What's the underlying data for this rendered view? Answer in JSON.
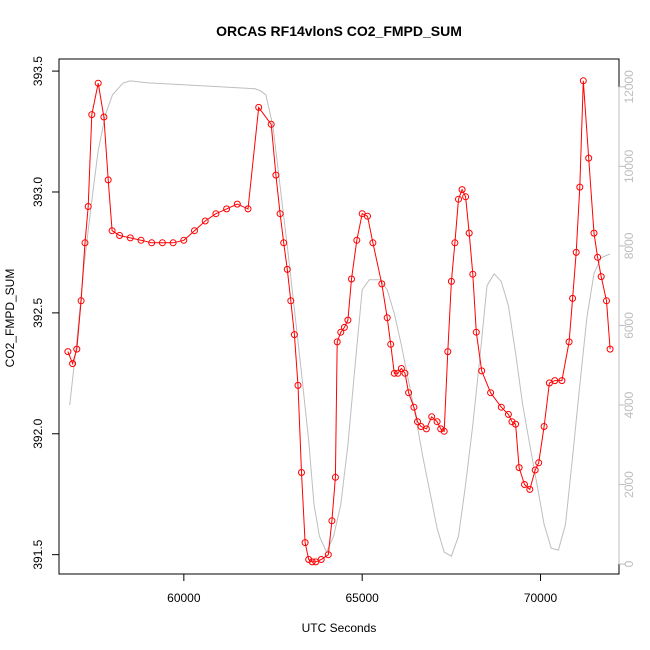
{
  "chart_data": {
    "type": "line",
    "title": "ORCAS RF14vlonS CO2_FMPD_SUM",
    "xlabel": "UTC Seconds",
    "ylabel": "CO2_FMPD_SUM",
    "xlim": [
      56500,
      72200
    ],
    "ylim": [
      391.42,
      393.55
    ],
    "y2lim": [
      -250,
      12700
    ],
    "x_ticks": [
      60000,
      65000,
      70000
    ],
    "y_ticks": [
      391.5,
      392.0,
      392.5,
      393.0,
      393.5
    ],
    "y_tick_labels": [
      "391.5",
      "392.0",
      "392.5",
      "393.0",
      "393.5"
    ],
    "y2_ticks": [
      0,
      2000,
      4000,
      6000,
      8000,
      10000,
      12000
    ],
    "grid": false,
    "colors": {
      "primary": "#ff0000",
      "secondary": "#bebebe"
    },
    "series": [
      {
        "axis": "left",
        "style": "line+points",
        "x": [
          56750,
          56880,
          57000,
          57120,
          57230,
          57320,
          57420,
          57600,
          57760,
          57880,
          57990,
          58200,
          58500,
          58800,
          59100,
          59400,
          59700,
          60000,
          60300,
          60600,
          60900,
          61200,
          61500,
          61800,
          62100,
          62450,
          62580,
          62700,
          62800,
          62900,
          63000,
          63100,
          63200,
          63300,
          63400,
          63500,
          63600,
          63700,
          63850,
          64050,
          64150,
          64250,
          64300,
          64400,
          64500,
          64600,
          64700,
          64850,
          65000,
          65150,
          65300,
          65550,
          65700,
          65800,
          65900,
          66000,
          66100,
          66200,
          66300,
          66450,
          66550,
          66650,
          66800,
          66950,
          67100,
          67200,
          67300,
          67400,
          67500,
          67600,
          67700,
          67800,
          67900,
          68000,
          68100,
          68200,
          68350,
          68600,
          68900,
          69100,
          69200,
          69300,
          69400,
          69550,
          69700,
          69850,
          69950,
          70100,
          70250,
          70400,
          70600,
          70800,
          70900,
          71000,
          71100,
          71200,
          71350,
          71500,
          71600,
          71700,
          71850,
          71950
        ],
        "y": [
          392.34,
          392.29,
          392.35,
          392.55,
          392.79,
          392.94,
          393.32,
          393.45,
          393.31,
          393.05,
          392.84,
          392.82,
          392.81,
          392.8,
          392.79,
          392.79,
          392.79,
          392.8,
          392.84,
          392.88,
          392.91,
          392.93,
          392.95,
          392.93,
          393.35,
          393.28,
          393.07,
          392.91,
          392.79,
          392.68,
          392.55,
          392.41,
          392.2,
          391.84,
          391.55,
          391.48,
          391.47,
          391.47,
          391.48,
          391.5,
          391.64,
          391.82,
          392.38,
          392.42,
          392.44,
          392.47,
          392.64,
          392.8,
          392.91,
          392.9,
          392.79,
          392.62,
          392.48,
          392.37,
          392.25,
          392.25,
          392.27,
          392.25,
          392.17,
          392.11,
          392.05,
          392.03,
          392.02,
          392.07,
          392.05,
          392.02,
          392.01,
          392.34,
          392.63,
          392.79,
          392.97,
          393.01,
          392.98,
          392.83,
          392.66,
          392.42,
          392.26,
          392.17,
          392.11,
          392.08,
          392.05,
          392.04,
          391.86,
          391.79,
          391.77,
          391.85,
          391.88,
          392.03,
          392.21,
          392.22,
          392.22,
          392.38,
          392.56,
          392.75,
          393.02,
          393.46,
          393.14,
          392.83,
          392.73,
          392.65,
          392.55,
          392.35
        ]
      },
      {
        "axis": "right",
        "style": "line",
        "x": [
          56800,
          57000,
          57200,
          57400,
          57600,
          57800,
          58000,
          58300,
          58500,
          59000,
          60000,
          61000,
          62000,
          62150,
          62300,
          62500,
          62700,
          62900,
          63100,
          63300,
          63500,
          63650,
          63800,
          64000,
          64200,
          64400,
          64600,
          64800,
          65000,
          65200,
          65500,
          65700,
          65900,
          66100,
          66300,
          66500,
          66700,
          66900,
          67100,
          67300,
          67500,
          67700,
          67900,
          68100,
          68300,
          68500,
          68700,
          68900,
          69100,
          69300,
          69500,
          69700,
          69900,
          70100,
          70300,
          70500,
          70700,
          70900,
          71100,
          71300,
          71500,
          71700,
          71950
        ],
        "y": [
          4000,
          5600,
          7500,
          9000,
          10400,
          11300,
          11800,
          12100,
          12150,
          12100,
          12050,
          12000,
          11950,
          11900,
          11800,
          11000,
          9500,
          8000,
          6400,
          4800,
          3100,
          1500,
          700,
          300,
          700,
          1500,
          3000,
          5000,
          6900,
          7150,
          7150,
          6900,
          6300,
          5500,
          4600,
          3700,
          2700,
          1800,
          900,
          300,
          200,
          700,
          2000,
          3500,
          5200,
          7000,
          7300,
          7100,
          6500,
          5300,
          4000,
          3000,
          2000,
          1000,
          400,
          350,
          1000,
          2700,
          4500,
          6200,
          7300,
          7700,
          7800
        ]
      }
    ]
  }
}
